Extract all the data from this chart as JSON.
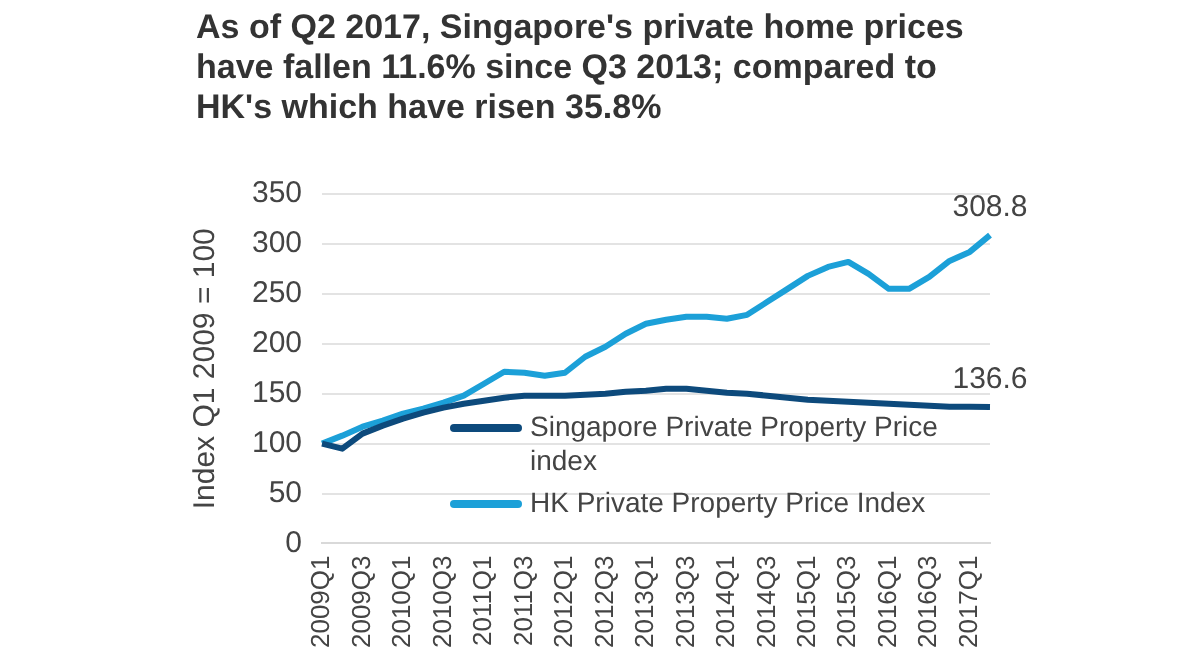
{
  "chart_data": {
    "type": "line",
    "title": "As of Q2 2017, Singapore's private home prices have fallen 11.6% since Q3 2013; compared to HK's which have risen 35.8%",
    "ylabel": "Index Q1 2009 = 100",
    "categories": [
      "2009Q1",
      null,
      "2009Q3",
      null,
      "2010Q1",
      null,
      "2010Q3",
      null,
      "2011Q1",
      null,
      "2011Q3",
      null,
      "2012Q1",
      null,
      "2012Q3",
      null,
      "2013Q1",
      null,
      "2013Q3",
      null,
      "2014Q1",
      null,
      "2014Q3",
      null,
      "2015Q1",
      null,
      "2015Q3",
      null,
      "2016Q1",
      null,
      "2016Q3",
      null,
      "2017Q1",
      null
    ],
    "series": [
      {
        "name": "Singapore Private Property Price index",
        "color": "#0d4a7c",
        "values": [
          100,
          95,
          110,
          118,
          125,
          131,
          136,
          140,
          143,
          146,
          148,
          148,
          148,
          149,
          150,
          152,
          153,
          155,
          155,
          153,
          151,
          150,
          148,
          146,
          144,
          143,
          142,
          141,
          140,
          139,
          138,
          137,
          137,
          136.6
        ],
        "value_labels": [
          null,
          null,
          null,
          null,
          null,
          null,
          null,
          null,
          null,
          null,
          null,
          null,
          null,
          null,
          null,
          null,
          null,
          null,
          null,
          null,
          null,
          null,
          null,
          null,
          null,
          null,
          null,
          null,
          null,
          null,
          null,
          null,
          null,
          "136.6"
        ]
      },
      {
        "name": "HK Private Property Price Index",
        "color": "#1ca0d8",
        "values": [
          100,
          108,
          117,
          123,
          130,
          135,
          141,
          148,
          160,
          172,
          171,
          168,
          171,
          187,
          197,
          210,
          220,
          224,
          227,
          227,
          225,
          229,
          242,
          255,
          268,
          277,
          282,
          270,
          255,
          255,
          267,
          283,
          292,
          308.8
        ],
        "value_labels": [
          null,
          null,
          null,
          null,
          null,
          null,
          null,
          null,
          null,
          null,
          null,
          null,
          null,
          null,
          null,
          null,
          null,
          null,
          null,
          null,
          null,
          null,
          null,
          null,
          null,
          null,
          null,
          null,
          null,
          null,
          null,
          null,
          null,
          "308.8"
        ]
      }
    ],
    "ylim": [
      0,
      350
    ],
    "yticks": [
      0,
      50,
      100,
      150,
      200,
      250,
      300,
      350
    ],
    "grid": "y",
    "legend": "bottom right",
    "marker": "none",
    "line_style": "solid"
  }
}
